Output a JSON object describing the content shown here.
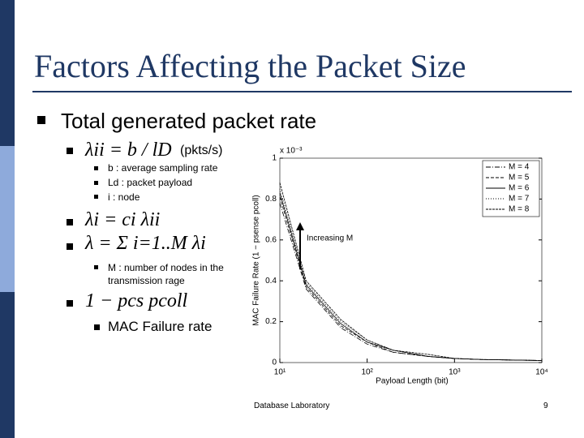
{
  "slide": {
    "title": "Factors Affecting the Packet Size",
    "bullet": "Total generated packet rate",
    "items": [
      {
        "formula": "λii = b / lD",
        "note": "(pkts/s)",
        "subitems": [
          "b : average sampling rate",
          "Ld : packet payload",
          "i : node"
        ]
      },
      {
        "formula": "λi = ci λii"
      },
      {
        "formula": "λ = Σ i=1..M λi",
        "subitems": [
          "M : number of nodes in the transmission rage"
        ]
      },
      {
        "formula": "1 − pcs pcoll",
        "subitems": [
          "MAC Failure rate"
        ]
      }
    ],
    "footer": "Database Laboratory",
    "page_number": "9"
  },
  "chart_data": {
    "type": "line",
    "x_label": "Payload Length (bit)",
    "y_label": "MAC Failure Rate (1 − psense pcoll)",
    "y_multiplier": "x 10⁻³",
    "annotation": "Increasing M",
    "x": [
      10,
      20,
      50,
      100,
      200,
      500,
      1000,
      2000,
      10000
    ],
    "xlim": [
      10,
      10000
    ],
    "xlog": true,
    "xticks": [
      {
        "value": 10,
        "label": "10¹"
      },
      {
        "value": 100,
        "label": "10²"
      },
      {
        "value": 1000,
        "label": "10³"
      },
      {
        "value": 10000,
        "label": "10⁴"
      }
    ],
    "ylim": [
      0,
      1
    ],
    "yticks": [
      0,
      0.2,
      0.4,
      0.6,
      0.8,
      1
    ],
    "legend": "upper right",
    "series": [
      {
        "name": "M = 4",
        "color": "#000000",
        "dash": "6 2 1 2",
        "values": [
          0.78,
          0.36,
          0.17,
          0.09,
          0.05,
          0.03,
          0.02,
          0.015,
          0.01
        ]
      },
      {
        "name": "M = 5",
        "color": "#000000",
        "dash": "4 2",
        "values": [
          0.81,
          0.37,
          0.18,
          0.1,
          0.05,
          0.03,
          0.02,
          0.015,
          0.01
        ]
      },
      {
        "name": "M = 6",
        "color": "#000000",
        "dash": "none",
        "values": [
          0.83,
          0.38,
          0.19,
          0.1,
          0.06,
          0.03,
          0.02,
          0.015,
          0.01
        ]
      },
      {
        "name": "M = 7",
        "color": "#000000",
        "dash": "1 2",
        "values": [
          0.85,
          0.39,
          0.2,
          0.11,
          0.06,
          0.03,
          0.02,
          0.015,
          0.01
        ]
      },
      {
        "name": "M = 8",
        "color": "#000000",
        "dash": "3 1",
        "values": [
          0.88,
          0.4,
          0.21,
          0.11,
          0.06,
          0.04,
          0.02,
          0.015,
          0.01
        ]
      }
    ]
  }
}
